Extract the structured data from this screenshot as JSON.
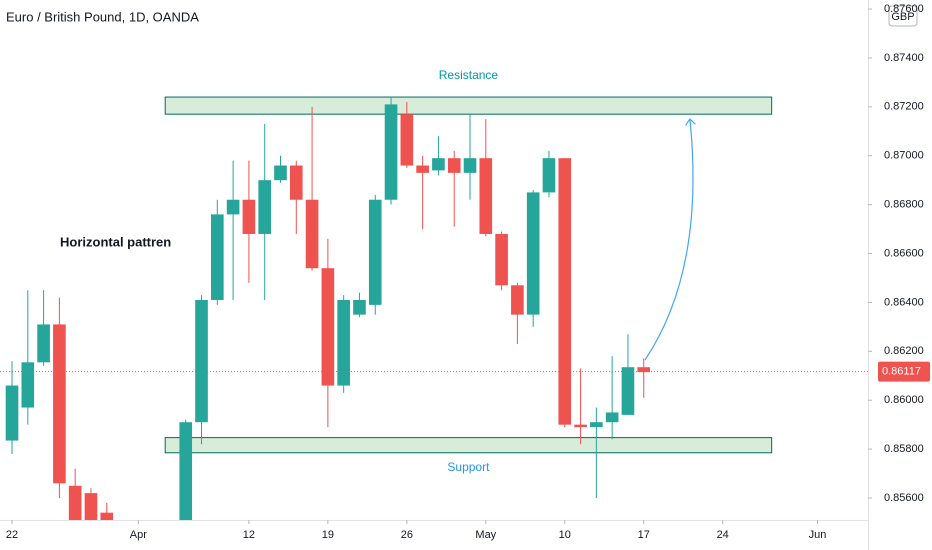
{
  "chart_data": {
    "type": "candlestick",
    "title": "Euro / British Pound, 1D, OANDA",
    "currency": "GBP",
    "up_color": "#26a69a",
    "down_color": "#ef5350",
    "grid": false,
    "x": [
      0,
      1,
      2,
      3,
      4,
      5,
      6,
      11,
      12,
      13,
      14,
      15,
      16,
      17,
      18,
      19,
      20,
      21,
      22,
      23,
      24,
      25,
      26,
      27,
      28,
      29,
      30,
      31,
      32,
      33,
      34,
      35,
      36,
      37,
      38,
      39,
      40
    ],
    "open": [
      0.85835,
      0.8597,
      0.86155,
      0.8631,
      0.8565,
      0.8562,
      0.8554,
      0.8548,
      0.8591,
      0.8641,
      0.8676,
      0.8682,
      0.8668,
      0.869,
      0.8696,
      0.8682,
      0.8654,
      0.8606,
      0.8635,
      0.8639,
      0.8682,
      0.8717,
      0.8696,
      0.8694,
      0.8699,
      0.8693,
      0.8699,
      0.8668,
      0.8647,
      0.8635,
      0.8685,
      0.8699,
      0.859,
      0.8589,
      0.8591,
      0.8594,
      0.86135
    ],
    "high": [
      0.8616,
      0.8645,
      0.8645,
      0.8642,
      0.8572,
      0.8564,
      0.8558,
      0.8592,
      0.8643,
      0.8682,
      0.8698,
      0.8698,
      0.8713,
      0.87,
      0.8698,
      0.872,
      0.8666,
      0.8643,
      0.8644,
      0.8684,
      0.8724,
      0.8722,
      0.87,
      0.8708,
      0.8702,
      0.8717,
      0.8715,
      0.8669,
      0.8648,
      0.8686,
      0.8702,
      0.8699,
      0.8613,
      0.8597,
      0.8618,
      0.8627,
      0.8617
    ],
    "low": [
      0.8578,
      0.859,
      0.8614,
      0.856,
      0.8545,
      0.8545,
      0.854,
      0.8545,
      0.8582,
      0.8639,
      0.8641,
      0.8648,
      0.8641,
      0.8689,
      0.8668,
      0.8653,
      0.8589,
      0.8603,
      0.8634,
      0.8635,
      0.868,
      0.8695,
      0.867,
      0.8692,
      0.8671,
      0.8682,
      0.8667,
      0.8645,
      0.8623,
      0.863,
      0.8683,
      0.8589,
      0.8582,
      0.856,
      0.8584,
      0.8594,
      0.8601
    ],
    "close": [
      0.8606,
      0.86155,
      0.8631,
      0.8566,
      0.855,
      0.855,
      0.8545,
      0.8591,
      0.8641,
      0.8676,
      0.8682,
      0.8668,
      0.869,
      0.8696,
      0.8682,
      0.8654,
      0.8606,
      0.8641,
      0.8641,
      0.8682,
      0.8721,
      0.8696,
      0.8693,
      0.8699,
      0.8693,
      0.8699,
      0.8668,
      0.8647,
      0.8635,
      0.8685,
      0.8699,
      0.859,
      0.8589,
      0.8591,
      0.8595,
      0.86135,
      0.86115
    ],
    "last_price": 0.86117,
    "xlim": [
      -0.76,
      54.2
    ],
    "ylim": [
      0.8551,
      0.87637
    ],
    "xticks": [
      {
        "value": 0,
        "label": "22"
      },
      {
        "value": 8,
        "label": "Apr"
      },
      {
        "value": 15,
        "label": "12"
      },
      {
        "value": 20,
        "label": "19"
      },
      {
        "value": 25,
        "label": "26"
      },
      {
        "value": 30,
        "label": "May"
      },
      {
        "value": 35,
        "label": "10"
      },
      {
        "value": 40,
        "label": "17"
      },
      {
        "value": 45,
        "label": "24"
      },
      {
        "value": 51,
        "label": "Jun"
      }
    ],
    "yticks": [
      {
        "value": 0.876,
        "label": "0.87600"
      },
      {
        "value": 0.874,
        "label": "0.87400"
      },
      {
        "value": 0.872,
        "label": "0.87200"
      },
      {
        "value": 0.87,
        "label": "0.87000"
      },
      {
        "value": 0.868,
        "label": "0.86800"
      },
      {
        "value": 0.866,
        "label": "0.86600"
      },
      {
        "value": 0.864,
        "label": "0.86400"
      },
      {
        "value": 0.862,
        "label": "0.86200"
      },
      {
        "value": 0.86,
        "label": "0.86000"
      },
      {
        "value": 0.858,
        "label": "0.85800"
      },
      {
        "value": 0.856,
        "label": "0.85600"
      }
    ],
    "zones": [
      {
        "label": "Resistance",
        "y": [
          0.8717,
          0.8724
        ],
        "x": [
          9.7,
          48.1
        ]
      },
      {
        "label": "Support",
        "y": [
          0.85785,
          0.85847
        ],
        "x": [
          9.7,
          48.1
        ]
      }
    ],
    "annotation": "Horizontal pattren"
  }
}
